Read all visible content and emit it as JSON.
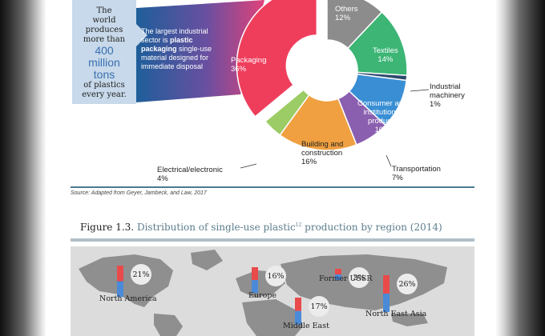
{
  "stat_box": {
    "line1": "The",
    "line2": "world",
    "line3": "produces",
    "line4": "more than",
    "big1": "400",
    "big2": "million",
    "big3": "tons",
    "line5": "of plastics",
    "line6": "every year."
  },
  "callout": {
    "text1": "The largest industrial sector is",
    "bold": "plastic packaging",
    "text2": "single-use material designed for immediate disposal"
  },
  "chart_data": {
    "type": "pie",
    "variant": "donut",
    "unit": "%",
    "slices": [
      {
        "label": "Others",
        "value": 12,
        "color": "#8c8c8c"
      },
      {
        "label": "Textiles",
        "value": 14,
        "color": "#3cb575"
      },
      {
        "label": "Industrial machinery",
        "value": 1,
        "color": "#2c4a6e"
      },
      {
        "label": "Consumer and institutional products",
        "value": 10,
        "color": "#3a8fd4"
      },
      {
        "label": "Transportation",
        "value": 7,
        "color": "#8b5fb0"
      },
      {
        "label": "Building and construction",
        "value": 16,
        "color": "#f0a040"
      },
      {
        "label": "Electrical/electronic",
        "value": 4,
        "color": "#9ccc65"
      },
      {
        "label": "Packaging",
        "value": 36,
        "color": "#ef3e5c"
      }
    ],
    "labels": {
      "others": "Others",
      "others_v": "12%",
      "textiles": "Textiles",
      "textiles_v": "14%",
      "industrial": "Industrial",
      "industrial2": "machinery",
      "industrial_v": "1%",
      "consumer1": "Consumer and",
      "consumer2": "institutional",
      "consumer3": "products",
      "consumer_v": "10%",
      "transport": "Transportation",
      "transport_v": "7%",
      "building1": "Building and",
      "building2": "construction",
      "building_v": "16%",
      "electrical": "Electrical/electronic",
      "electrical_v": "4%",
      "packaging": "Packaging",
      "packaging_v": "36%"
    },
    "source": "Source:  Adapted from Geyer, Jambeck, and Law, 2017"
  },
  "figure": {
    "number": "Figure  1.3.",
    "title": "Distribution of single-use plastic",
    "superscript": "12",
    "title_end": " production by region (2014)"
  },
  "map_data": {
    "type": "bar",
    "categories": [
      "North America",
      "Europe",
      "Former USSR",
      "Middle East",
      "North East Asia"
    ],
    "values": [
      21,
      16,
      3,
      17,
      26
    ],
    "value_labels": [
      "21%",
      "16%",
      "3%",
      "17%",
      "26%"
    ],
    "bar_colors": [
      "#e94a4a",
      "#4a8ad8"
    ]
  }
}
